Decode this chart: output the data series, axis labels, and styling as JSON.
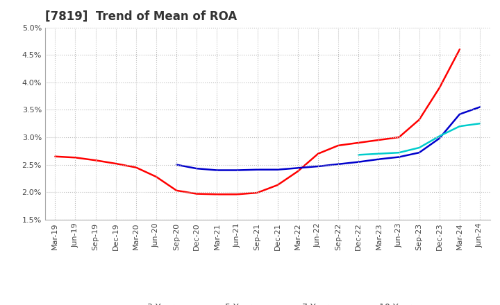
{
  "title": "[7819]  Trend of Mean of ROA",
  "background_color": "#ffffff",
  "plot_background_color": "#ffffff",
  "grid_color": "#bbbbbb",
  "ylim": [
    0.015,
    0.05
  ],
  "yticks": [
    0.015,
    0.02,
    0.025,
    0.03,
    0.035,
    0.04,
    0.045,
    0.05
  ],
  "ytick_labels": [
    "1.5%",
    "2.0%",
    "2.5%",
    "3.0%",
    "3.5%",
    "4.0%",
    "4.5%",
    "5.0%"
  ],
  "x_labels": [
    "Mar-19",
    "Jun-19",
    "Sep-19",
    "Dec-19",
    "Mar-20",
    "Jun-20",
    "Sep-20",
    "Dec-20",
    "Mar-21",
    "Jun-21",
    "Sep-21",
    "Dec-21",
    "Mar-22",
    "Jun-22",
    "Sep-22",
    "Dec-22",
    "Mar-23",
    "Jun-23",
    "Sep-23",
    "Dec-23",
    "Mar-24",
    "Jun-24"
  ],
  "series": {
    "3 Years": {
      "color": "#ff0000",
      "linewidth": 1.8,
      "data": [
        0.0265,
        0.0263,
        0.0258,
        0.0252,
        0.0245,
        0.0228,
        0.0203,
        0.0197,
        0.0196,
        0.0196,
        0.0199,
        0.0213,
        0.0238,
        0.027,
        0.0285,
        0.029,
        0.0295,
        0.03,
        0.0332,
        0.039,
        0.046,
        null
      ]
    },
    "5 Years": {
      "color": "#0000cc",
      "linewidth": 1.8,
      "data": [
        null,
        null,
        null,
        null,
        null,
        null,
        0.025,
        0.0243,
        0.024,
        0.024,
        0.0241,
        0.0241,
        0.0244,
        0.0247,
        0.0251,
        0.0255,
        0.026,
        0.0264,
        0.0272,
        0.0298,
        0.0342,
        0.0355
      ]
    },
    "7 Years": {
      "color": "#00cccc",
      "linewidth": 1.8,
      "data": [
        null,
        null,
        null,
        null,
        null,
        null,
        null,
        null,
        null,
        null,
        null,
        null,
        null,
        null,
        null,
        0.0268,
        0.027,
        0.0272,
        0.0281,
        0.0302,
        0.032,
        0.0325
      ]
    },
    "10 Years": {
      "color": "#008000",
      "linewidth": 1.8,
      "data": [
        null,
        null,
        null,
        null,
        null,
        null,
        null,
        null,
        null,
        null,
        null,
        null,
        null,
        null,
        null,
        null,
        null,
        null,
        null,
        null,
        null,
        null
      ]
    }
  },
  "figsize": [
    7.2,
    4.4
  ],
  "dpi": 100,
  "title_fontsize": 12,
  "tick_fontsize": 8,
  "legend_fontsize": 9
}
